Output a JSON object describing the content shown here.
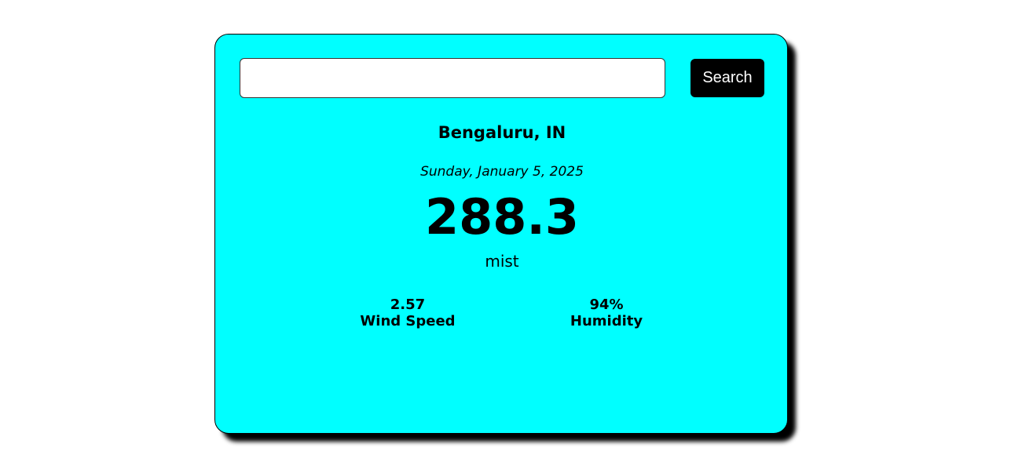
{
  "search": {
    "value": "",
    "placeholder": "",
    "button_label": "Search"
  },
  "weather": {
    "city": "Bengaluru, IN",
    "date": "Sunday, January 5, 2025",
    "temperature": "288.3",
    "description": "mist",
    "wind_speed": {
      "value": "2.57",
      "label": "Wind Speed"
    },
    "humidity": {
      "value": "94%",
      "label": "Humidity"
    }
  },
  "colors": {
    "card_background": "#00ffff",
    "card_border": "#000000",
    "button_background": "#000000",
    "button_text": "#ffffff"
  }
}
